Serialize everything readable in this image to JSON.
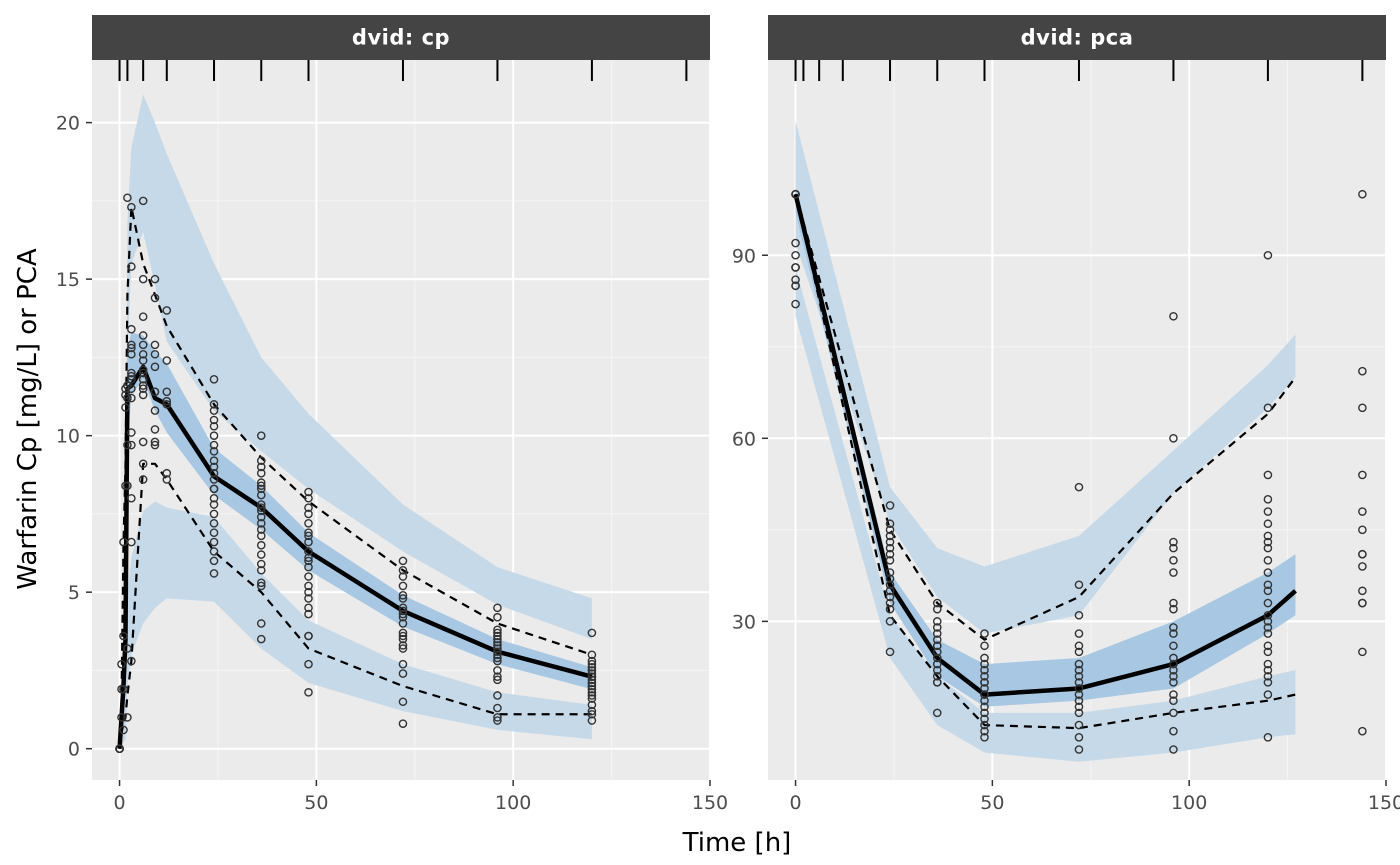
{
  "chart_data": {
    "type": "scatter",
    "title": "",
    "xlabel": "Time [h]",
    "ylabel": "Warfarin Cp [mg/L] or PCA",
    "grid": true,
    "legend": "none",
    "colors": {
      "panel_bg": "#ebebeb",
      "strip_bg": "#444444",
      "outer_band": "#c6d9e8",
      "median_band": "#a7c7e2",
      "line": "#000000",
      "points": "#333333"
    },
    "panels": [
      {
        "strip": "dvid: cp",
        "xlim": [
          -7,
          150
        ],
        "ylim": [
          -1,
          22
        ],
        "x_ticks": [
          0,
          50,
          100,
          150
        ],
        "x_tick_labels": [
          "0",
          "50",
          "100",
          "150"
        ],
        "y_ticks": [
          0,
          5,
          10,
          15,
          20
        ],
        "y_tick_labels": [
          "0",
          "5",
          "10",
          "15",
          "20"
        ],
        "rug_times": [
          0,
          2,
          6,
          12,
          24,
          36,
          48,
          72,
          96,
          120,
          144
        ],
        "band_times": [
          0,
          0.5,
          1,
          1.5,
          2,
          3,
          6,
          9,
          12,
          24,
          36,
          48,
          72,
          96,
          120
        ],
        "upper_pi": {
          "lo": [
            0.0,
            0.6,
            1.4,
            2.2,
            12.6,
            15.5,
            16.5,
            14.8,
            13.0,
            10.8,
            9.5,
            8.3,
            6.3,
            4.6,
            3.5
          ],
          "hi": [
            0.0,
            1.5,
            4.2,
            6.5,
            16.8,
            19.2,
            20.9,
            20.0,
            19.0,
            15.5,
            12.5,
            10.7,
            7.8,
            5.8,
            4.8
          ]
        },
        "median_pi": {
          "lo": [
            0.0,
            0.3,
            0.9,
            1.6,
            9.6,
            11.3,
            11.8,
            10.8,
            10.1,
            8.1,
            7.0,
            5.7,
            3.9,
            2.7,
            1.9
          ],
          "hi": [
            0.0,
            0.9,
            2.3,
            3.8,
            12.8,
            13.3,
            13.2,
            12.7,
            12.3,
            9.6,
            8.4,
            6.9,
            4.9,
            3.5,
            2.6
          ]
        },
        "lower_pi": {
          "lo": [
            0.0,
            0.1,
            0.2,
            0.3,
            2.0,
            3.0,
            4.0,
            4.5,
            4.8,
            4.7,
            3.2,
            2.1,
            1.2,
            0.6,
            0.3
          ],
          "hi": [
            0.0,
            0.3,
            0.9,
            1.6,
            5.0,
            6.1,
            7.6,
            7.9,
            7.7,
            7.4,
            5.6,
            4.1,
            2.7,
            1.8,
            1.4
          ]
        },
        "observed_median": {
          "x": [
            0,
            0.5,
            1,
            1.5,
            2,
            3,
            6,
            9,
            12,
            24,
            36,
            48,
            72,
            96,
            120
          ],
          "y": [
            0,
            1.0,
            2.0,
            3.5,
            11.5,
            11.6,
            12.2,
            11.2,
            11.0,
            8.7,
            7.7,
            6.3,
            4.4,
            3.1,
            2.3
          ]
        },
        "observed_p95": {
          "x": [
            0,
            0.5,
            1,
            1.5,
            2,
            3,
            6,
            9,
            12,
            24,
            36,
            48,
            72,
            96,
            120
          ],
          "y": [
            0,
            1.5,
            6.5,
            9.0,
            14.5,
            17.3,
            15.5,
            14.5,
            13.5,
            11.0,
            9.3,
            7.9,
            5.7,
            4.0,
            3.0
          ]
        },
        "observed_p05": {
          "x": [
            0,
            0.5,
            1,
            1.5,
            2,
            3,
            6,
            9,
            12,
            24,
            36,
            48,
            72,
            96,
            120
          ],
          "y": [
            0,
            0.5,
            0.8,
            1.0,
            1.7,
            2.8,
            9.1,
            9.1,
            8.6,
            6.3,
            5.0,
            3.2,
            2.0,
            1.1,
            1.1
          ]
        },
        "observations": {
          "x": [
            0,
            0,
            0,
            0,
            0,
            0.5,
            0.5,
            0.5,
            1,
            1,
            1,
            1,
            1.5,
            1.5,
            1.5,
            1.5,
            2,
            2,
            2,
            2,
            2,
            2,
            2,
            3,
            3,
            3,
            3,
            3,
            3,
            3,
            3,
            3,
            3,
            3,
            3,
            3,
            3,
            3,
            3,
            6,
            6,
            6,
            6,
            6,
            6,
            6,
            6,
            6,
            6,
            6,
            6,
            6,
            6,
            6,
            6,
            9,
            9,
            9,
            9,
            9,
            9,
            9,
            9,
            9,
            9,
            9,
            12,
            12,
            12,
            12,
            12,
            12,
            12,
            24,
            24,
            24,
            24,
            24,
            24,
            24,
            24,
            24,
            24,
            24,
            24,
            24,
            24,
            24,
            24,
            24,
            24,
            24,
            24,
            24,
            24,
            24,
            36,
            36,
            36,
            36,
            36,
            36,
            36,
            36,
            36,
            36,
            36,
            36,
            36,
            36,
            36,
            36,
            36,
            36,
            36,
            36,
            36,
            36,
            36,
            48,
            48,
            48,
            48,
            48,
            48,
            48,
            48,
            48,
            48,
            48,
            48,
            48,
            48,
            48,
            48,
            48,
            48,
            48,
            48,
            48,
            48,
            72,
            72,
            72,
            72,
            72,
            72,
            72,
            72,
            72,
            72,
            72,
            72,
            72,
            72,
            72,
            72,
            72,
            72,
            72,
            72,
            96,
            96,
            96,
            96,
            96,
            96,
            96,
            96,
            96,
            96,
            96,
            96,
            96,
            96,
            96,
            96,
            96,
            96,
            96,
            96,
            120,
            120,
            120,
            120,
            120,
            120,
            120,
            120,
            120,
            120,
            120,
            120,
            120,
            120,
            120,
            120,
            120,
            120,
            120,
            120
          ],
          "y": [
            0,
            0,
            0,
            0,
            0,
            1.0,
            1.9,
            2.7,
            0.6,
            3.6,
            6.6,
            1.9,
            8.4,
            11.3,
            11.5,
            10.9,
            17.6,
            11.6,
            11.2,
            8.4,
            9.7,
            3.2,
            1.0,
            17.3,
            15.4,
            13.4,
            12.9,
            12.8,
            12.6,
            12.0,
            11.8,
            11.5,
            11.2,
            9.7,
            8.0,
            6.6,
            2.8,
            11.9,
            10.1,
            17.5,
            15.0,
            13.8,
            13.2,
            12.9,
            12.6,
            12.4,
            12.0,
            11.8,
            11.5,
            11.3,
            9.8,
            9.1,
            8.6,
            11.6,
            12.1,
            15.0,
            14.4,
            12.9,
            12.6,
            12.2,
            11.4,
            10.8,
            10.2,
            9.7,
            9.8,
            11.4,
            14.0,
            12.4,
            11.4,
            11.1,
            8.8,
            8.6,
            11.0,
            11.8,
            11.0,
            10.5,
            10.3,
            10.0,
            9.7,
            9.5,
            9.2,
            9.0,
            8.8,
            8.6,
            8.3,
            8.0,
            7.8,
            7.5,
            7.2,
            6.9,
            6.6,
            6.3,
            6.0,
            5.6,
            10.8,
            8.3,
            10.0,
            9.2,
            9.0,
            8.8,
            8.5,
            8.3,
            8.1,
            7.8,
            7.6,
            7.4,
            7.2,
            7.0,
            6.8,
            6.5,
            6.2,
            5.9,
            5.7,
            5.3,
            5.2,
            4.0,
            3.5,
            8.4,
            7.7,
            8.2,
            8.0,
            7.7,
            7.5,
            7.2,
            6.9,
            6.6,
            6.3,
            6.0,
            5.8,
            5.5,
            5.2,
            5.0,
            4.8,
            4.5,
            4.3,
            3.6,
            3.6,
            2.7,
            1.8,
            6.1,
            6.8,
            6.0,
            5.7,
            5.5,
            5.2,
            4.9,
            4.8,
            4.5,
            4.4,
            4.2,
            4.0,
            3.7,
            3.5,
            3.3,
            3.2,
            2.7,
            2.4,
            1.5,
            0.8,
            4.3,
            3.6,
            4.5,
            4.2,
            3.8,
            3.7,
            3.6,
            3.5,
            3.4,
            3.3,
            3.2,
            3.1,
            3.0,
            2.9,
            2.8,
            2.5,
            2.3,
            2.2,
            1.7,
            1.3,
            1.0,
            0.9,
            3.7,
            3.0,
            2.8,
            2.6,
            2.5,
            2.4,
            2.3,
            2.2,
            2.1,
            2.0,
            1.9,
            1.8,
            1.6,
            1.4,
            1.2,
            1.1,
            0.9,
            2.7,
            1.7,
            2.3
          ]
        }
      },
      {
        "strip": "dvid: pca",
        "xlim": [
          -7,
          150
        ],
        "ylim": [
          4,
          122
        ],
        "x_ticks": [
          0,
          50,
          100,
          150
        ],
        "x_tick_labels": [
          "0",
          "50",
          "100",
          "150"
        ],
        "y_ticks": [
          30,
          60,
          90
        ],
        "y_tick_labels": [
          "30",
          "60",
          "90"
        ],
        "rug_times": [
          0,
          2,
          6,
          12,
          24,
          36,
          48,
          72,
          96,
          120,
          144
        ],
        "band_times": [
          0,
          24,
          36,
          48,
          72,
          96,
          120,
          127
        ],
        "upper_pi": {
          "lo": [
            92,
            46,
            34,
            28,
            31,
            51,
            65,
            70
          ],
          "hi": [
            112,
            52,
            42,
            39,
            44,
            58,
            72,
            77
          ]
        },
        "median_pi": {
          "lo": [
            97,
            33,
            21,
            16,
            17,
            19,
            28,
            31
          ],
          "hi": [
            101,
            38,
            27,
            23,
            24,
            30,
            38,
            41
          ]
        },
        "lower_pi": {
          "lo": [
            80,
            24,
            13,
            8.5,
            7,
            8.5,
            11,
            11.5
          ],
          "hi": [
            88,
            31,
            21,
            15,
            15,
            17,
            21,
            22
          ]
        },
        "observed_median": {
          "x": [
            0,
            24,
            36,
            48,
            72,
            96,
            120,
            127
          ],
          "y": [
            100,
            36,
            24,
            18,
            19,
            23,
            31,
            35
          ]
        },
        "observed_p95": {
          "x": [
            0,
            24,
            36,
            48,
            72,
            96,
            120,
            127
          ],
          "y": [
            100,
            45,
            33,
            27,
            34,
            51,
            64,
            70
          ]
        },
        "observed_p05": {
          "x": [
            0,
            24,
            36,
            48,
            72,
            96,
            120,
            127
          ],
          "y": [
            100,
            31,
            21,
            13,
            12.5,
            15,
            17,
            18
          ]
        },
        "observations": {
          "x": [
            0,
            0,
            0,
            0,
            0,
            0,
            0,
            0,
            0,
            0,
            0,
            24,
            24,
            24,
            24,
            24,
            24,
            24,
            24,
            24,
            24,
            24,
            24,
            24,
            24,
            24,
            24,
            24,
            36,
            36,
            36,
            36,
            36,
            36,
            36,
            36,
            36,
            36,
            36,
            36,
            36,
            36,
            36,
            36,
            48,
            48,
            48,
            48,
            48,
            48,
            48,
            48,
            48,
            48,
            48,
            48,
            48,
            48,
            48,
            48,
            48,
            48,
            72,
            72,
            72,
            72,
            72,
            72,
            72,
            72,
            72,
            72,
            72,
            72,
            72,
            72,
            72,
            72,
            72,
            72,
            96,
            96,
            96,
            96,
            96,
            96,
            96,
            96,
            96,
            96,
            96,
            96,
            96,
            96,
            96,
            96,
            96,
            96,
            96,
            96,
            96,
            120,
            120,
            120,
            120,
            120,
            120,
            120,
            120,
            120,
            120,
            120,
            120,
            120,
            120,
            120,
            120,
            120,
            120,
            120,
            120,
            120,
            120,
            120,
            120,
            120,
            120,
            144,
            144,
            144,
            144,
            144,
            144,
            144,
            144,
            144,
            144,
            144,
            144,
            144,
            144
          ],
          "y": [
            100,
            100,
            100,
            92,
            90,
            88,
            88,
            86,
            85,
            85,
            82,
            49,
            46,
            45,
            44,
            43,
            42,
            41,
            40,
            38,
            36,
            35,
            34,
            33,
            32,
            30,
            25,
            37,
            33,
            32,
            30,
            29,
            28,
            27,
            26,
            25,
            24,
            23,
            22,
            21,
            20,
            20,
            15,
            26,
            28,
            26,
            24,
            23,
            22,
            21,
            20,
            19,
            18,
            17,
            16,
            15,
            14,
            13,
            12,
            11,
            18,
            20,
            52,
            36,
            31,
            28,
            26,
            25,
            23,
            22,
            20,
            19,
            18,
            17,
            16,
            15,
            13,
            11,
            9,
            21,
            80,
            60,
            43,
            42,
            40,
            38,
            33,
            32,
            29,
            28,
            26,
            24,
            23,
            22,
            21,
            20,
            18,
            17,
            15,
            12,
            9,
            90,
            65,
            54,
            50,
            48,
            46,
            44,
            43,
            42,
            40,
            38,
            36,
            35,
            33,
            31,
            30,
            29,
            26,
            25,
            23,
            22,
            21,
            20,
            18,
            11,
            28,
            100,
            71,
            65,
            54,
            48,
            45,
            41,
            39,
            35,
            33,
            33,
            25,
            12,
            41
          ]
        }
      }
    ]
  }
}
